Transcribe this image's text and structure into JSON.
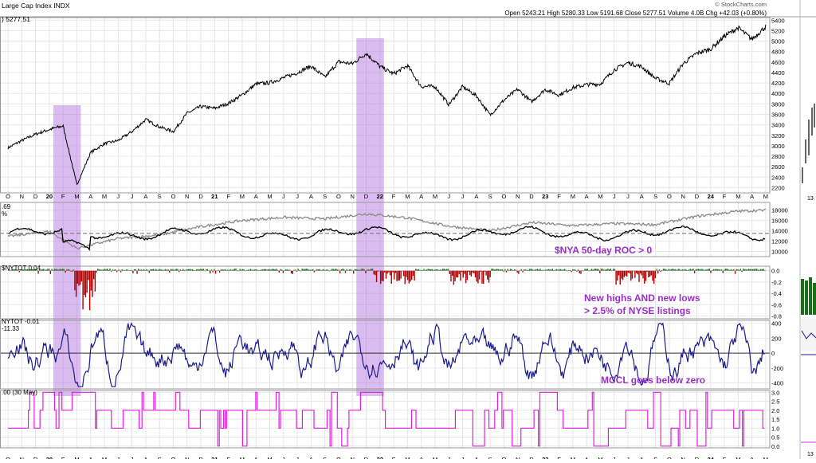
{
  "header": {
    "title": "Large Cap Index",
    "symbol": "INDX",
    "last_label": ") 5277.51",
    "watermark": "© StockCharts.com",
    "quote": "Open 5243.21  High 5280.33  Low 5191.68  Close 5277.51  Volume 4.0B  Chg +42.03 (+0.80%)"
  },
  "x_axis": {
    "months": [
      "O",
      "N",
      "D",
      "20",
      "F",
      "M",
      "A",
      "M",
      "J",
      "J",
      "A",
      "S",
      "O",
      "N",
      "D",
      "21",
      "F",
      "M",
      "A",
      "M",
      "J",
      "J",
      "A",
      "S",
      "O",
      "N",
      "D",
      "22",
      "F",
      "M",
      "A",
      "M",
      "J",
      "J",
      "A",
      "S",
      "O",
      "N",
      "D",
      "23",
      "F",
      "M",
      "A",
      "M",
      "J",
      "J",
      "A",
      "S",
      "O",
      "N",
      "D",
      "24",
      "F",
      "M",
      "A",
      "M"
    ],
    "highlight_labels": [
      "20",
      "21",
      "22",
      "23",
      "24"
    ]
  },
  "right_panel": {
    "tick_label": "13"
  },
  "panels": {
    "price": {
      "y_ticks": [
        2200,
        2400,
        2600,
        2800,
        3000,
        3200,
        3400,
        3600,
        3800,
        4000,
        4200,
        4400,
        4600,
        4800,
        5000,
        5200,
        5400
      ],
      "ylim": [
        2100,
        5450
      ]
    },
    "breadth": {
      "label_top": ".69",
      "label_pct": "%",
      "y_ticks": [
        10000,
        12000,
        14000,
        16000,
        18000
      ],
      "ylim": [
        9000,
        19500
      ],
      "annotation": "$NYA 50-day ROC > 0",
      "annotation_color": "#9a2fc8"
    },
    "hilo": {
      "label": "$NYTOT 0.04",
      "y_ticks": [
        "0.0",
        "-0.2",
        "-0.4",
        "-0.6",
        "-0.8"
      ],
      "annotation_line1": "New highs AND new lows",
      "annotation_line2": "> 2.5% of NYSE listings",
      "annotation_color": "#9a2fc8",
      "bar_up_color": "#1d6b1d",
      "bar_down_color": "#b00000"
    },
    "mccl": {
      "label1": "NYTOT -0.01",
      "label2": "-11.33",
      "y_ticks": [
        "400",
        "200",
        "0",
        "-200",
        "-400"
      ],
      "annotation": "MCCL goes below zero",
      "annotation_color": "#9a2fc8",
      "line_color": "#1c1c8a"
    },
    "count": {
      "label": ".00 (30 May)",
      "y_ticks": [
        "3.0",
        "2.5",
        "2.0",
        "1.5",
        "1.0",
        "0.5",
        "0.0"
      ],
      "line_color": "#e020e0"
    }
  },
  "chart_data": {
    "type": "line",
    "title": "Large Cap Index",
    "series": [
      {
        "name": "Large Cap Index",
        "points": [
          [
            "2019-10",
            2960
          ],
          [
            "2019-11",
            3100
          ],
          [
            "2019-12",
            3220
          ],
          [
            "2020-01",
            3310
          ],
          [
            "2020-02",
            3380
          ],
          [
            "2020-03",
            2250
          ],
          [
            "2020-04",
            2870
          ],
          [
            "2020-05",
            3040
          ],
          [
            "2020-06",
            3100
          ],
          [
            "2020-07",
            3270
          ],
          [
            "2020-08",
            3500
          ],
          [
            "2020-09",
            3360
          ],
          [
            "2020-10",
            3270
          ],
          [
            "2020-11",
            3620
          ],
          [
            "2020-12",
            3750
          ],
          [
            "2021-01",
            3714
          ],
          [
            "2021-02",
            3811
          ],
          [
            "2021-03",
            3970
          ],
          [
            "2021-04",
            4180
          ],
          [
            "2021-05",
            4204
          ],
          [
            "2021-06",
            4297
          ],
          [
            "2021-07",
            4395
          ],
          [
            "2021-08",
            4522
          ],
          [
            "2021-09",
            4307
          ],
          [
            "2021-10",
            4605
          ],
          [
            "2021-11",
            4567
          ],
          [
            "2021-12",
            4766
          ],
          [
            "2022-01",
            4515
          ],
          [
            "2022-02",
            4373
          ],
          [
            "2022-03",
            4530
          ],
          [
            "2022-04",
            4131
          ],
          [
            "2022-05",
            4132
          ],
          [
            "2022-06",
            3785
          ],
          [
            "2022-07",
            4130
          ],
          [
            "2022-08",
            3955
          ],
          [
            "2022-09",
            3585
          ],
          [
            "2022-10",
            3872
          ],
          [
            "2022-11",
            4080
          ],
          [
            "2022-12",
            3839
          ],
          [
            "2023-01",
            4076
          ],
          [
            "2023-02",
            3970
          ],
          [
            "2023-03",
            4109
          ],
          [
            "2023-04",
            4169
          ],
          [
            "2023-05",
            4179
          ],
          [
            "2023-06",
            4450
          ],
          [
            "2023-07",
            4588
          ],
          [
            "2023-08",
            4508
          ],
          [
            "2023-09",
            4288
          ],
          [
            "2023-10",
            4193
          ],
          [
            "2023-11",
            4567
          ],
          [
            "2023-12",
            4770
          ],
          [
            "2024-01",
            4846
          ],
          [
            "2024-02",
            5096
          ],
          [
            "2024-03",
            5254
          ],
          [
            "2024-04",
            5035
          ],
          [
            "2024-05",
            5277
          ]
        ]
      },
      {
        "name": "$NYA 50-day ROC > 0",
        "note": "grey line in breadth panel (approximate values)",
        "points": [
          [
            "2019-10",
            12900
          ],
          [
            "2020-01",
            13900
          ],
          [
            "2020-03",
            10600
          ],
          [
            "2020-06",
            12500
          ],
          [
            "2020-09",
            13200
          ],
          [
            "2020-12",
            14800
          ],
          [
            "2021-03",
            16000
          ],
          [
            "2021-06",
            16600
          ],
          [
            "2021-09",
            16300
          ],
          [
            "2021-12",
            17300
          ],
          [
            "2022-03",
            16500
          ],
          [
            "2022-06",
            14900
          ],
          [
            "2022-09",
            14000
          ],
          [
            "2022-12",
            15600
          ],
          [
            "2023-03",
            15000
          ],
          [
            "2023-06",
            15400
          ],
          [
            "2023-09",
            15200
          ],
          [
            "2023-12",
            16800
          ],
          [
            "2024-03",
            17800
          ],
          [
            "2024-05",
            18000
          ]
        ]
      }
    ],
    "highlight_regions": [
      [
        "2020-01",
        "2020-03"
      ],
      [
        "2021-11",
        "2022-01"
      ]
    ],
    "ylim": [
      2100,
      5450
    ]
  }
}
